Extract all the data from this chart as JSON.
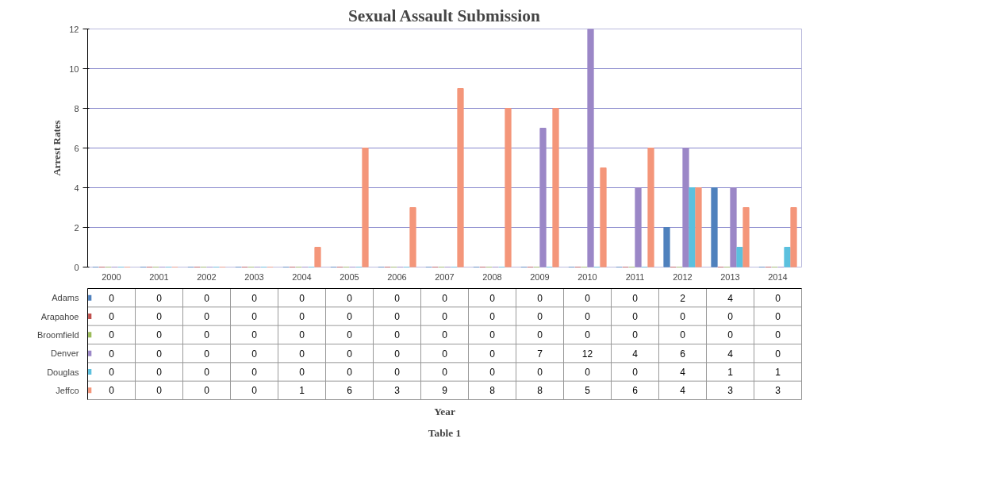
{
  "chart_data": {
    "type": "bar",
    "title": "Sexual Assault Submission",
    "ylabel": "Arrest Rates",
    "annotations": [
      "Year",
      "Table 1"
    ],
    "categories": [
      "2000",
      "2001",
      "2002",
      "2003",
      "2004",
      "2005",
      "2006",
      "2007",
      "2008",
      "2009",
      "2010",
      "2011",
      "2012",
      "2013",
      "2014"
    ],
    "series": [
      {
        "name": "Adams",
        "color": "#4f81bd",
        "values": [
          0,
          0,
          0,
          0,
          0,
          0,
          0,
          0,
          0,
          0,
          0,
          0,
          2,
          4,
          0
        ]
      },
      {
        "name": "Arapahoe",
        "color": "#c0504d",
        "values": [
          0,
          0,
          0,
          0,
          0,
          0,
          0,
          0,
          0,
          0,
          0,
          0,
          0,
          0,
          0
        ]
      },
      {
        "name": "Broomfield",
        "color": "#9bbb59",
        "values": [
          0,
          0,
          0,
          0,
          0,
          0,
          0,
          0,
          0,
          0,
          0,
          0,
          0,
          0,
          0
        ]
      },
      {
        "name": "Denver",
        "color": "#9b87c7",
        "values": [
          0,
          0,
          0,
          0,
          0,
          0,
          0,
          0,
          0,
          7,
          12,
          4,
          6,
          4,
          0
        ]
      },
      {
        "name": "Douglas",
        "color": "#5bc0de",
        "values": [
          0,
          0,
          0,
          0,
          0,
          0,
          0,
          0,
          0,
          0,
          0,
          0,
          4,
          1,
          1
        ]
      },
      {
        "name": "Jeffco",
        "color": "#f4967a",
        "values": [
          0,
          0,
          0,
          0,
          1,
          6,
          3,
          9,
          8,
          8,
          5,
          6,
          4,
          3,
          3
        ]
      }
    ],
    "ylim": [
      0,
      12
    ],
    "yticks": [
      0,
      2,
      4,
      6,
      8,
      10,
      12
    ],
    "grid": "y",
    "legend": "bottom left",
    "data_labels": true
  }
}
